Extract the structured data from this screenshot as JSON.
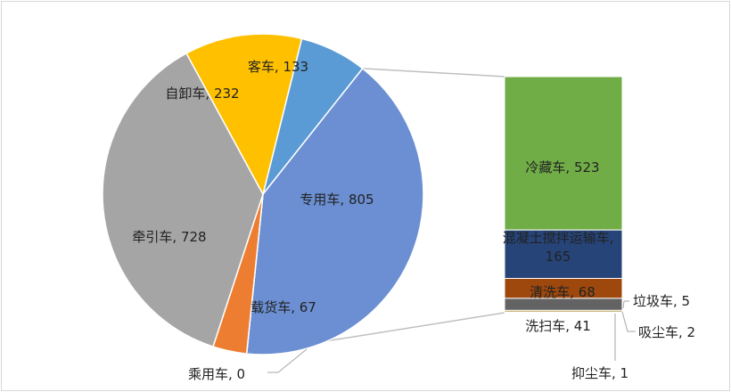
{
  "chart_data": {
    "type": "pie",
    "subtype": "pie-of-bar",
    "main_slices": [
      {
        "label": "客车, 133",
        "category": "客车",
        "value": 133,
        "color": "#5b9bd5"
      },
      {
        "label": "专用车, 805",
        "category": "专用车",
        "value": 805,
        "color": "#6b8fd2"
      },
      {
        "label": "乘用车, 0",
        "category": "乘用车",
        "value": 0,
        "color": "#ed7d31"
      },
      {
        "label": "载货车, 67",
        "category": "载货车",
        "value": 67,
        "color": "#ed7d31"
      },
      {
        "label": "牵引车, 728",
        "category": "牵引车",
        "value": 728,
        "color": "#a5a5a5"
      },
      {
        "label": "自卸车, 232",
        "category": "自卸车",
        "value": 232,
        "color": "#ffc000"
      }
    ],
    "breakdown_of": "专用车",
    "breakdown": [
      {
        "label": "冷藏车, 523",
        "category": "冷藏车",
        "value": 523,
        "color": "#70ad47"
      },
      {
        "label_line1": "混凝土搅拌运输车,",
        "label_line2": "165",
        "category": "混凝土搅拌运输车",
        "value": 165,
        "color": "#264478"
      },
      {
        "label": "清洗车, 68",
        "category": "清洗车",
        "value": 68,
        "color": "#9e480e"
      },
      {
        "label": "洗扫车, 41",
        "category": "洗扫车",
        "value": 41,
        "color": "#636363"
      },
      {
        "label": "垃圾车, 5",
        "category": "垃圾车",
        "value": 5,
        "color": "#997300"
      },
      {
        "label": "吸尘车, 2",
        "category": "吸尘车",
        "value": 2,
        "color": "#43682b"
      },
      {
        "label": "抑尘车, 1",
        "category": "抑尘车",
        "value": 1,
        "color": "#5b9bd5"
      }
    ],
    "connector_color": "#bfbfbf"
  }
}
